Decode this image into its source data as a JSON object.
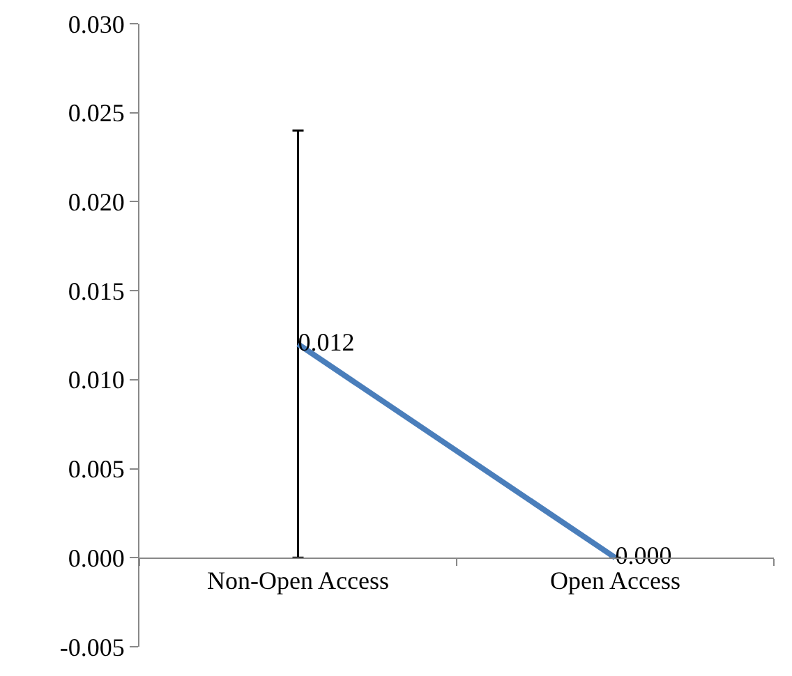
{
  "chart_data": {
    "type": "line",
    "categories": [
      "Non-Open Access",
      "Open Access"
    ],
    "series": [
      {
        "color": "#4a7ebb",
        "values": [
          0.012,
          0.0
        ],
        "value_labels": [
          "0.012",
          "0.000"
        ],
        "errors": [
          0.012,
          0
        ]
      }
    ],
    "marker": "none",
    "line_style": "solid",
    "grid": false,
    "ylim": [
      -0.005,
      0.03
    ],
    "yticks": [
      {
        "value": -0.005,
        "label": "-0.005"
      },
      {
        "value": 0,
        "label": "0.000"
      },
      {
        "value": 0.005,
        "label": "0.005"
      },
      {
        "value": 0.01,
        "label": "0.010"
      },
      {
        "value": 0.015,
        "label": "0.015"
      },
      {
        "value": 0.02,
        "label": "0.020"
      },
      {
        "value": 0.025,
        "label": "0.025"
      },
      {
        "value": 0.03,
        "label": "0.030"
      }
    ]
  }
}
